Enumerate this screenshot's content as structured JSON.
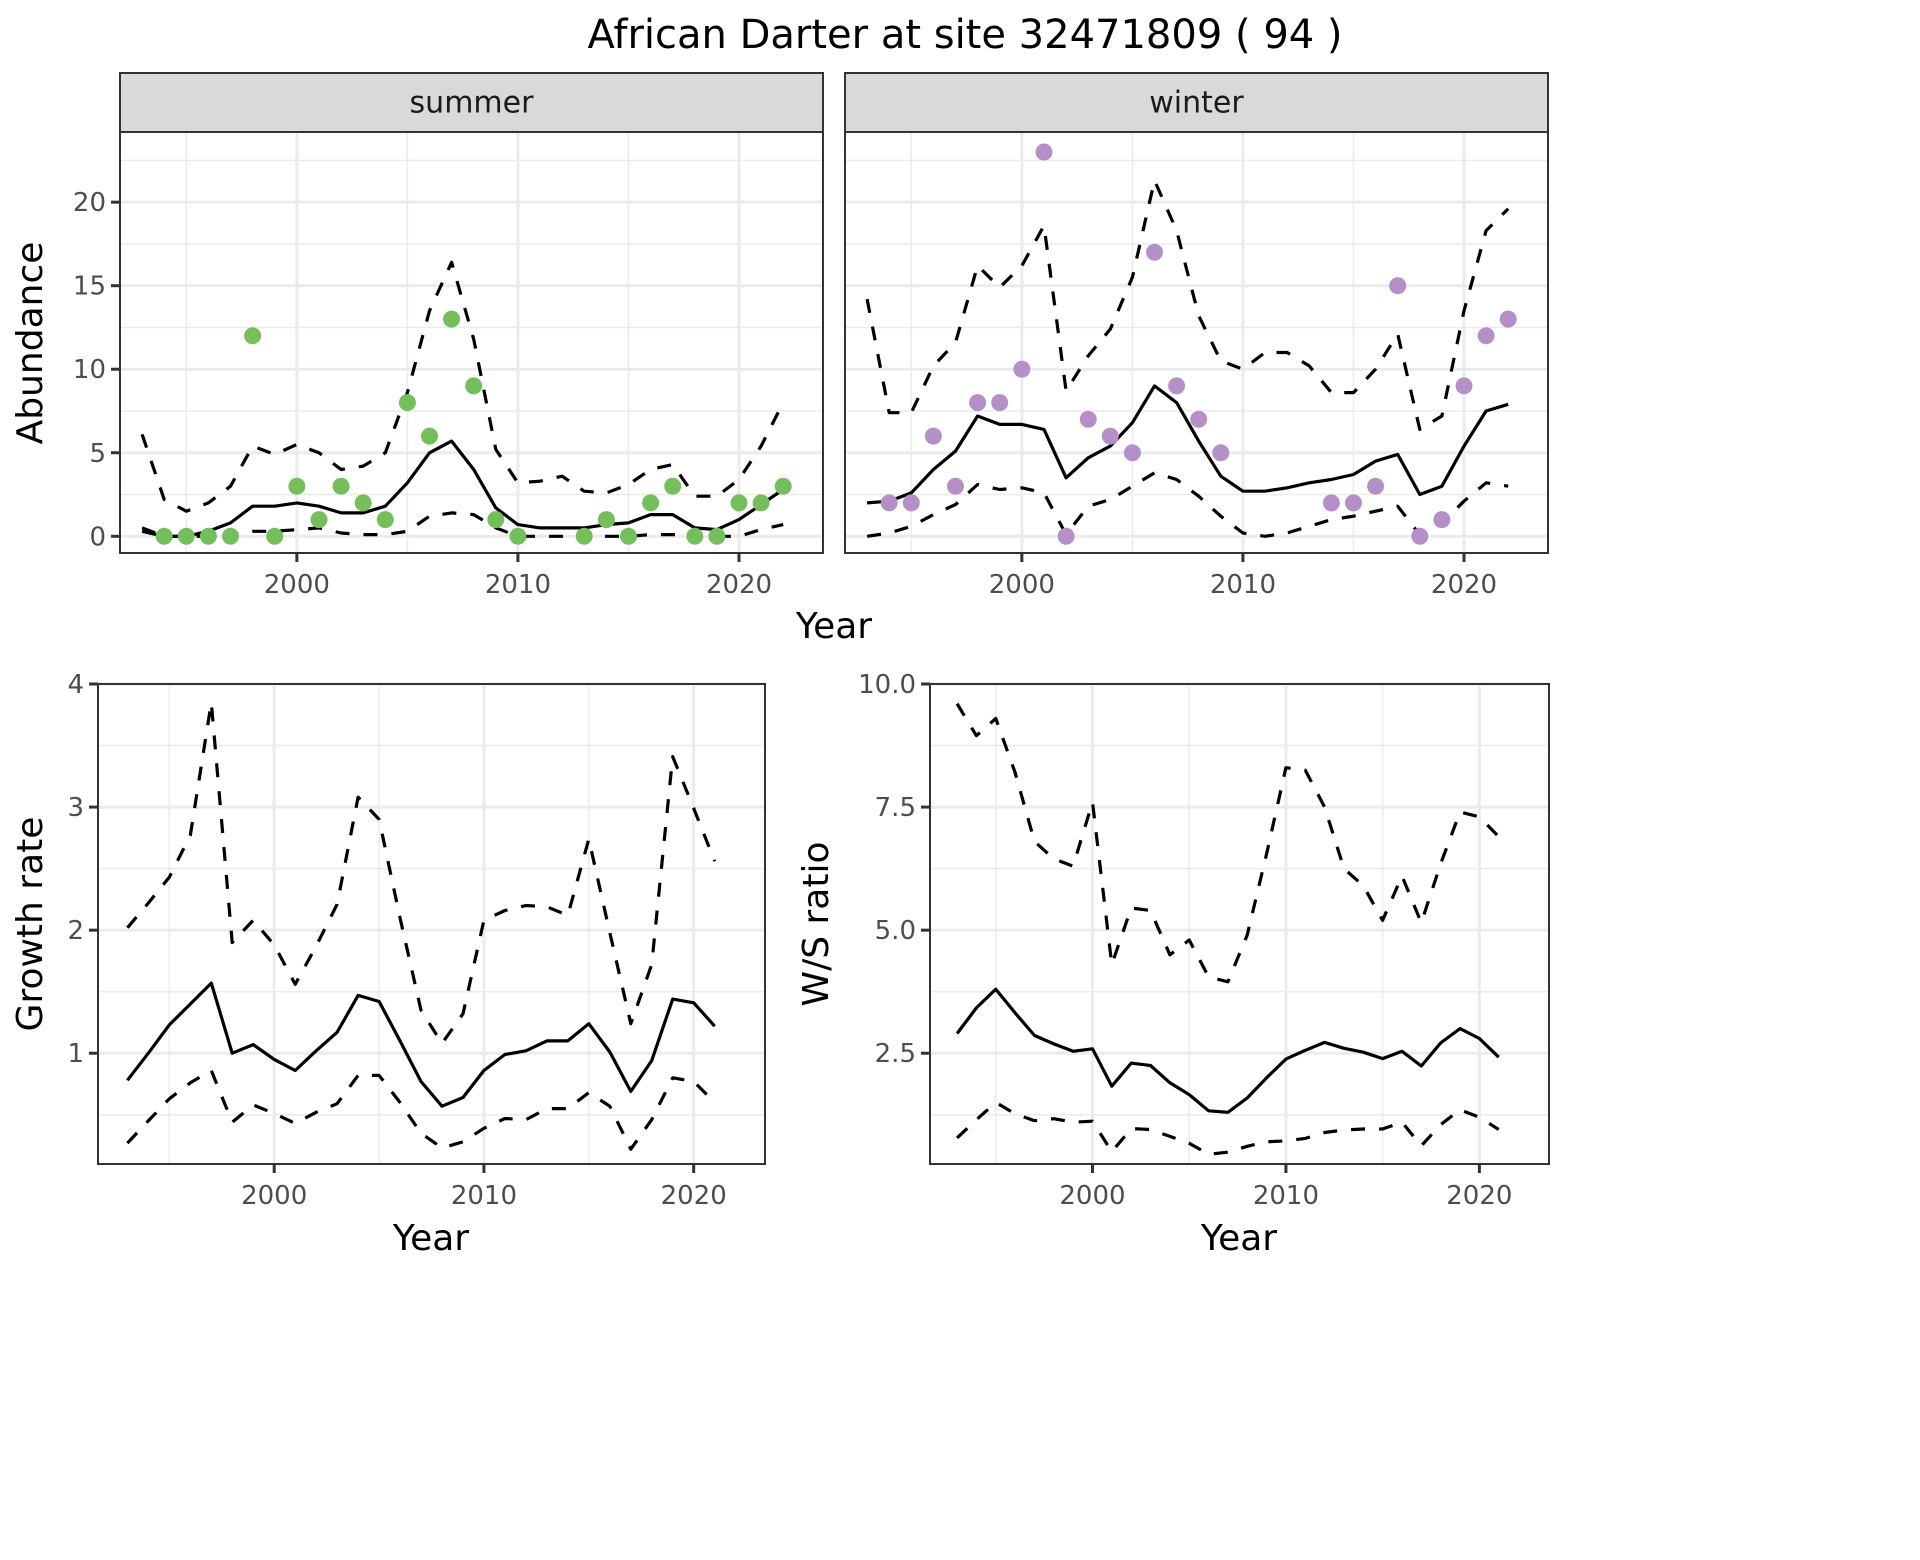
{
  "title": "African Darter at site 32471809 ( 94 )",
  "chart_data": [
    {
      "id": "abundance",
      "type": "line+scatter",
      "facets": [
        "summer",
        "winter"
      ],
      "xlabel": "Year",
      "ylabel": "Abundance",
      "x_ticks": [
        2000,
        2010,
        2020
      ],
      "y_ticks": [
        0,
        5,
        10,
        15,
        20
      ],
      "xlim": [
        1992,
        2023.8
      ],
      "ylim": [
        -1,
        24.2
      ],
      "grid": true,
      "panels": [
        {
          "facet": "summer",
          "point_color": "#74bf5b",
          "points": {
            "x": [
              1994,
              1995,
              1996,
              1997,
              1998,
              1999,
              2000,
              2001,
              2002,
              2003,
              2004,
              2005,
              2006,
              2007,
              2008,
              2009,
              2010,
              2013,
              2014,
              2015,
              2016,
              2017,
              2018,
              2019,
              2020,
              2021,
              2022
            ],
            "y": [
              0,
              0,
              0,
              0,
              12,
              0,
              3,
              1,
              3,
              2,
              1,
              8,
              6,
              13,
              9,
              1,
              0,
              0,
              1,
              0,
              2,
              3,
              0,
              0,
              2,
              2,
              3
            ]
          },
          "mean": {
            "x": [
              1993,
              1994,
              1995,
              1996,
              1997,
              1998,
              1999,
              2000,
              2001,
              2002,
              2003,
              2004,
              2005,
              2006,
              2007,
              2008,
              2009,
              2010,
              2011,
              2012,
              2013,
              2014,
              2015,
              2016,
              2017,
              2018,
              2019,
              2020,
              2021,
              2022
            ],
            "y": [
              0.3,
              0,
              0,
              0.3,
              0.8,
              1.8,
              1.8,
              2.0,
              1.8,
              1.4,
              1.4,
              1.8,
              3.2,
              5.0,
              5.7,
              4.0,
              1.7,
              0.7,
              0.5,
              0.5,
              0.5,
              0.7,
              0.8,
              1.3,
              1.3,
              0.5,
              0.4,
              1.0,
              1.9,
              2.8
            ]
          },
          "upper": {
            "x": [
              1993,
              1994,
              1995,
              1996,
              1997,
              1998,
              1999,
              2000,
              2001,
              2002,
              2003,
              2004,
              2005,
              2006,
              2007,
              2008,
              2009,
              2010,
              2011,
              2012,
              2013,
              2014,
              2015,
              2016,
              2017,
              2018,
              2019,
              2020,
              2021,
              2022
            ],
            "y": [
              6.1,
              2.2,
              1.5,
              2.0,
              3.0,
              5.4,
              4.9,
              5.5,
              5.0,
              4.0,
              4.2,
              5.0,
              8.6,
              13.5,
              16.4,
              11.8,
              5.2,
              3.2,
              3.3,
              3.6,
              2.7,
              2.6,
              3.1,
              4.0,
              4.3,
              2.4,
              2.4,
              3.4,
              5.4,
              8.0
            ]
          },
          "lower": {
            "x": [
              1993,
              1994,
              1995,
              1996,
              1997,
              1998,
              1999,
              2000,
              2001,
              2002,
              2003,
              2004,
              2005,
              2006,
              2007,
              2008,
              2009,
              2010,
              2011,
              2012,
              2013,
              2014,
              2015,
              2016,
              2017,
              2018,
              2019,
              2020,
              2021,
              2022
            ],
            "y": [
              0.5,
              0,
              0,
              0,
              0.1,
              0.3,
              0.3,
              0.4,
              0.5,
              0.2,
              0.1,
              0.1,
              0.3,
              1.2,
              1.4,
              1.3,
              0.5,
              0,
              0,
              0,
              0,
              0,
              0,
              0.1,
              0.1,
              0,
              0,
              0,
              0.4,
              0.7
            ]
          }
        },
        {
          "facet": "winter",
          "point_color": "#b590c8",
          "points": {
            "x": [
              1994,
              1995,
              1996,
              1997,
              1998,
              1999,
              2000,
              2001,
              2002,
              2003,
              2004,
              2005,
              2006,
              2007,
              2008,
              2009,
              2014,
              2015,
              2016,
              2017,
              2018,
              2019,
              2020,
              2021,
              2022
            ],
            "y": [
              2,
              2,
              6,
              3,
              8,
              8,
              10,
              23,
              0,
              7,
              6,
              5,
              17,
              9,
              7,
              5,
              2,
              2,
              3,
              15,
              0,
              1,
              9,
              12,
              13
            ]
          },
          "mean": {
            "x": [
              1993,
              1994,
              1995,
              1996,
              1997,
              1998,
              1999,
              2000,
              2001,
              2002,
              2003,
              2004,
              2005,
              2006,
              2007,
              2008,
              2009,
              2010,
              2011,
              2012,
              2013,
              2014,
              2015,
              2016,
              2017,
              2018,
              2019,
              2020,
              2021,
              2022
            ],
            "y": [
              2.0,
              2.1,
              2.6,
              4.0,
              5.1,
              7.2,
              6.7,
              6.7,
              6.4,
              3.5,
              4.7,
              5.4,
              6.8,
              9.0,
              8.0,
              5.7,
              3.6,
              2.7,
              2.7,
              2.9,
              3.2,
              3.4,
              3.7,
              4.5,
              4.9,
              2.5,
              3.0,
              5.4,
              7.5,
              7.9
            ]
          },
          "upper": {
            "x": [
              1993,
              1994,
              1995,
              1996,
              1997,
              1998,
              1999,
              2000,
              2001,
              2002,
              2003,
              2004,
              2005,
              2006,
              2007,
              2008,
              2009,
              2010,
              2011,
              2012,
              2013,
              2014,
              2015,
              2016,
              2017,
              2018,
              2019,
              2020,
              2021,
              2022
            ],
            "y": [
              14.2,
              7.4,
              7.4,
              10.2,
              11.6,
              16.2,
              14.9,
              16.2,
              18.6,
              8.7,
              10.8,
              12.4,
              15.5,
              21.3,
              18.3,
              13.2,
              10.5,
              10.0,
              11.0,
              11.0,
              10.2,
              8.6,
              8.6,
              10.0,
              12.1,
              6.4,
              7.2,
              13.5,
              18.3,
              19.6
            ]
          },
          "lower": {
            "x": [
              1993,
              1994,
              1995,
              1996,
              1997,
              1998,
              1999,
              2000,
              2001,
              2002,
              2003,
              2004,
              2005,
              2006,
              2007,
              2008,
              2009,
              2010,
              2011,
              2012,
              2013,
              2014,
              2015,
              2016,
              2017,
              2018,
              2019,
              2020,
              2021,
              2022
            ],
            "y": [
              0,
              0.2,
              0.6,
              1.3,
              1.9,
              3.1,
              2.8,
              2.9,
              2.6,
              0.1,
              1.8,
              2.2,
              3.0,
              3.8,
              3.4,
              2.4,
              1.2,
              0.2,
              0,
              0.2,
              0.6,
              1.0,
              1.2,
              1.5,
              1.8,
              0.1,
              0.8,
              2.1,
              3.2,
              3.0
            ]
          }
        }
      ]
    },
    {
      "id": "growth",
      "type": "line",
      "xlabel": "Year",
      "ylabel": "Growth rate",
      "x_ticks": [
        2000,
        2010,
        2020
      ],
      "y_ticks": [
        1,
        2,
        3,
        4
      ],
      "xlim": [
        1991.6,
        2023.4
      ],
      "ylim": [
        0.1,
        4.0
      ],
      "grid": true,
      "series": [
        {
          "name": "mean",
          "style": "solid",
          "x": [
            1993,
            1994,
            1995,
            1996,
            1997,
            1998,
            1999,
            2000,
            2001,
            2002,
            2003,
            2004,
            2005,
            2006,
            2007,
            2008,
            2009,
            2010,
            2011,
            2012,
            2013,
            2014,
            2015,
            2016,
            2017,
            2018,
            2019,
            2020,
            2021
          ],
          "y": [
            0.78,
            1.0,
            1.23,
            1.4,
            1.57,
            1.0,
            1.07,
            0.95,
            0.86,
            1.02,
            1.17,
            1.47,
            1.42,
            1.1,
            0.77,
            0.57,
            0.64,
            0.86,
            0.99,
            1.02,
            1.1,
            1.1,
            1.24,
            1.01,
            0.69,
            0.94,
            1.44,
            1.41,
            1.22
          ]
        },
        {
          "name": "upper",
          "style": "dashed",
          "x": [
            1993,
            1994,
            1995,
            1996,
            1997,
            1998,
            1999,
            2000,
            2001,
            2002,
            2003,
            2004,
            2005,
            2006,
            2007,
            2008,
            2009,
            2010,
            2011,
            2012,
            2013,
            2014,
            2015,
            2016,
            2017,
            2018,
            2019,
            2020,
            2021
          ],
          "y": [
            2.02,
            2.22,
            2.43,
            2.77,
            3.85,
            1.9,
            2.08,
            1.88,
            1.56,
            1.87,
            2.21,
            3.08,
            2.9,
            2.1,
            1.35,
            1.08,
            1.32,
            2.08,
            2.16,
            2.2,
            2.19,
            2.12,
            2.74,
            1.98,
            1.24,
            1.72,
            3.41,
            2.99,
            2.56
          ]
        },
        {
          "name": "lower",
          "style": "dashed",
          "x": [
            1993,
            1994,
            1995,
            1996,
            1997,
            1998,
            1999,
            2000,
            2001,
            2002,
            2003,
            2004,
            2005,
            2006,
            2007,
            2008,
            2009,
            2010,
            2011,
            2012,
            2013,
            2014,
            2015,
            2016,
            2017,
            2018,
            2019,
            2020,
            2021
          ],
          "y": [
            0.27,
            0.45,
            0.63,
            0.76,
            0.86,
            0.44,
            0.58,
            0.51,
            0.43,
            0.52,
            0.59,
            0.82,
            0.82,
            0.6,
            0.35,
            0.23,
            0.28,
            0.39,
            0.47,
            0.46,
            0.55,
            0.55,
            0.68,
            0.57,
            0.22,
            0.46,
            0.8,
            0.77,
            0.6
          ]
        }
      ]
    },
    {
      "id": "ws_ratio",
      "type": "line",
      "xlabel": "Year",
      "ylabel": "W/S ratio",
      "x_ticks": [
        2000,
        2010,
        2020
      ],
      "y_ticks": [
        "2.5",
        "5.0",
        "7.5",
        "10.0"
      ],
      "y_tick_values": [
        2.5,
        5.0,
        7.5,
        10.0
      ],
      "xlim": [
        1991.6,
        2023.6
      ],
      "ylim": [
        0.25,
        10.0
      ],
      "grid": true,
      "series": [
        {
          "name": "mean",
          "style": "solid",
          "x": [
            1993,
            1994,
            1995,
            1996,
            1997,
            1998,
            1999,
            2000,
            2001,
            2002,
            2003,
            2004,
            2005,
            2006,
            2007,
            2008,
            2009,
            2010,
            2011,
            2012,
            2013,
            2014,
            2015,
            2016,
            2017,
            2018,
            2019,
            2020,
            2021
          ],
          "y": [
            2.9,
            3.42,
            3.8,
            3.32,
            2.86,
            2.69,
            2.54,
            2.59,
            1.83,
            2.3,
            2.25,
            1.9,
            1.66,
            1.33,
            1.3,
            1.59,
            2.0,
            2.38,
            2.56,
            2.72,
            2.6,
            2.52,
            2.39,
            2.54,
            2.24,
            2.71,
            3.0,
            2.8,
            2.42
          ]
        },
        {
          "name": "upper",
          "style": "dashed",
          "x": [
            1993,
            1994,
            1995,
            1996,
            1997,
            1998,
            1999,
            2000,
            2001,
            2002,
            2003,
            2004,
            2005,
            2006,
            2007,
            2008,
            2009,
            2010,
            2011,
            2012,
            2013,
            2014,
            2015,
            2016,
            2017,
            2018,
            2019,
            2020,
            2021
          ],
          "y": [
            9.6,
            8.95,
            9.3,
            8.2,
            6.8,
            6.45,
            6.3,
            7.6,
            4.3,
            5.45,
            5.4,
            4.5,
            4.8,
            4.05,
            3.95,
            4.9,
            6.55,
            8.3,
            8.25,
            7.5,
            6.25,
            5.9,
            5.2,
            6.1,
            5.15,
            6.35,
            7.4,
            7.3,
            6.9
          ]
        },
        {
          "name": "lower",
          "style": "dashed",
          "x": [
            1993,
            1994,
            1995,
            1996,
            1997,
            1998,
            1999,
            2000,
            2001,
            2002,
            2003,
            2004,
            2005,
            2006,
            2007,
            2008,
            2009,
            2010,
            2011,
            2012,
            2013,
            2014,
            2015,
            2016,
            2017,
            2018,
            2019,
            2020,
            2021
          ],
          "y": [
            0.78,
            1.15,
            1.5,
            1.27,
            1.13,
            1.17,
            1.1,
            1.12,
            0.5,
            0.97,
            0.95,
            0.81,
            0.67,
            0.45,
            0.49,
            0.61,
            0.7,
            0.72,
            0.77,
            0.89,
            0.94,
            0.96,
            0.96,
            1.1,
            0.62,
            1.05,
            1.35,
            1.2,
            0.95
          ]
        }
      ]
    }
  ]
}
